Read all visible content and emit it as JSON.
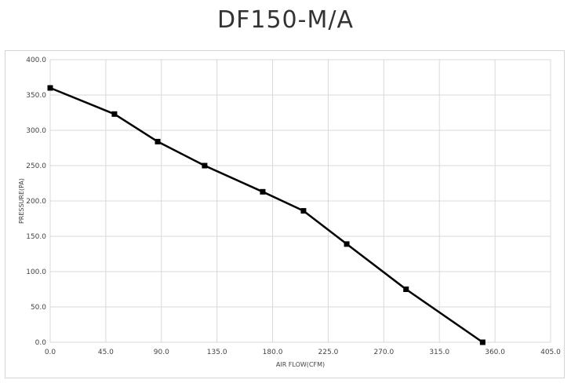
{
  "chart_data": {
    "type": "line",
    "title": "DF150-M/A",
    "xlabel": "AIR FLOW(CFM)",
    "ylabel": "PRESSURE(PA)",
    "xlim": [
      0,
      405
    ],
    "ylim": [
      0,
      400
    ],
    "x_ticks": [
      "0.0",
      "45.0",
      "90.0",
      "135.0",
      "180.0",
      "225.0",
      "270.0",
      "315.0",
      "360.0",
      "405.0"
    ],
    "y_ticks": [
      "0.0",
      "50.0",
      "100.0",
      "150.0",
      "200.0",
      "250.0",
      "300.0",
      "350.0",
      "400.0"
    ],
    "grid": true,
    "line_color": "#000000",
    "grid_color": "#d9d9d9",
    "series": [
      {
        "marker": "square",
        "x": [
          0,
          52,
          87,
          125,
          172,
          205,
          240,
          288,
          350
        ],
        "y": [
          360,
          323,
          284,
          250,
          213,
          186,
          139,
          75,
          0
        ]
      }
    ]
  }
}
